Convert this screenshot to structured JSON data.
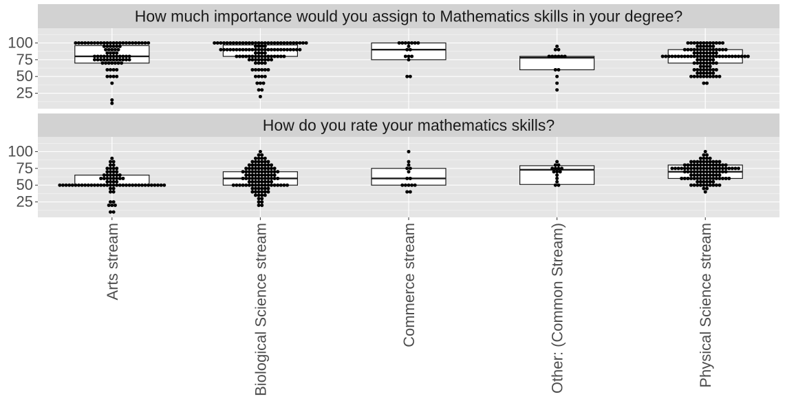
{
  "chart_data": {
    "type": "boxplot",
    "categories": [
      "Arts stream",
      "Biological Science stream",
      "Commerce stream",
      "Other: (Common Stream)",
      "Physical Science stream"
    ],
    "y_ticks": [
      25,
      50,
      75,
      100
    ],
    "ylim": [
      2,
      122
    ],
    "grid": true,
    "legend": "none",
    "colors": {
      "panel_bg": "#e5e5e5",
      "grid_major": "#ffffff",
      "strip_bg": "#d2d2d2",
      "box_fill": "#ffffff",
      "box_stroke": "#1a1a1a",
      "point": "#000000",
      "tick_text": "#4d4d4d",
      "strip_text": "#1a1a1a"
    },
    "panels": [
      {
        "title": "How much importance would you assign to Mathematics skills in your degree?",
        "boxes": [
          {
            "q1": 70,
            "median": 80,
            "q3": 96
          },
          {
            "q1": 80,
            "median": 90,
            "q3": 97
          },
          {
            "q1": 75,
            "median": 90,
            "q3": 100
          },
          {
            "q1": 60,
            "median": 78,
            "q3": 80
          },
          {
            "q1": 70,
            "median": 80,
            "q3": 90
          }
        ],
        "points": [
          [
            [
              100,
              24
            ],
            [
              95,
              6
            ],
            [
              90,
              5
            ],
            [
              85,
              4
            ],
            [
              80,
              12
            ],
            [
              75,
              12
            ],
            [
              70,
              7
            ],
            [
              60,
              4
            ],
            [
              50,
              4
            ],
            [
              40,
              1
            ],
            [
              15,
              1
            ],
            [
              10,
              1
            ]
          ],
          [
            [
              100,
              30
            ],
            [
              95,
              4
            ],
            [
              90,
              26
            ],
            [
              85,
              4
            ],
            [
              80,
              16
            ],
            [
              75,
              8
            ],
            [
              70,
              4
            ],
            [
              60,
              6
            ],
            [
              50,
              4
            ],
            [
              40,
              3
            ],
            [
              30,
              2
            ],
            [
              20,
              1
            ]
          ],
          [
            [
              100,
              7
            ],
            [
              95,
              1
            ],
            [
              90,
              2
            ],
            [
              80,
              3
            ],
            [
              75,
              1
            ],
            [
              50,
              2
            ]
          ],
          [
            [
              95,
              1
            ],
            [
              90,
              2
            ],
            [
              80,
              6
            ],
            [
              60,
              2
            ],
            [
              50,
              1
            ],
            [
              40,
              1
            ],
            [
              30,
              1
            ]
          ],
          [
            [
              100,
              12
            ],
            [
              95,
              6
            ],
            [
              90,
              14
            ],
            [
              85,
              8
            ],
            [
              80,
              28
            ],
            [
              75,
              6
            ],
            [
              70,
              8
            ],
            [
              65,
              4
            ],
            [
              60,
              8
            ],
            [
              55,
              6
            ],
            [
              50,
              10
            ],
            [
              40,
              2
            ]
          ]
        ]
      },
      {
        "title": "How do you rate your mathematics skills?",
        "boxes": [
          {
            "q1": 50,
            "median": 50,
            "q3": 65
          },
          {
            "q1": 50,
            "median": 60,
            "q3": 70
          },
          {
            "q1": 50,
            "median": 60,
            "q3": 75
          },
          {
            "q1": 51,
            "median": 73,
            "q3": 79
          },
          {
            "q1": 60,
            "median": 70,
            "q3": 80
          }
        ],
        "points": [
          [
            [
              90,
              1
            ],
            [
              85,
              2
            ],
            [
              80,
              2
            ],
            [
              75,
              4
            ],
            [
              70,
              4
            ],
            [
              65,
              6
            ],
            [
              60,
              8
            ],
            [
              55,
              4
            ],
            [
              50,
              34
            ],
            [
              45,
              2
            ],
            [
              40,
              2
            ],
            [
              25,
              2
            ],
            [
              20,
              3
            ],
            [
              10,
              2
            ]
          ],
          [
            [
              100,
              1
            ],
            [
              95,
              2
            ],
            [
              90,
              4
            ],
            [
              85,
              6
            ],
            [
              80,
              8
            ],
            [
              75,
              10
            ],
            [
              70,
              12
            ],
            [
              65,
              10
            ],
            [
              60,
              12
            ],
            [
              55,
              8
            ],
            [
              50,
              18
            ],
            [
              45,
              6
            ],
            [
              40,
              6
            ],
            [
              35,
              4
            ],
            [
              30,
              2
            ],
            [
              25,
              2
            ],
            [
              20,
              2
            ]
          ],
          [
            [
              100,
              1
            ],
            [
              85,
              1
            ],
            [
              80,
              1
            ],
            [
              75,
              2
            ],
            [
              70,
              1
            ],
            [
              60,
              2
            ],
            [
              50,
              5
            ],
            [
              40,
              2
            ]
          ],
          [
            [
              85,
              1
            ],
            [
              80,
              2
            ],
            [
              75,
              4
            ],
            [
              70,
              3
            ],
            [
              65,
              1
            ],
            [
              60,
              1
            ],
            [
              55,
              1
            ],
            [
              50,
              2
            ]
          ],
          [
            [
              100,
              1
            ],
            [
              95,
              2
            ],
            [
              90,
              4
            ],
            [
              85,
              10
            ],
            [
              80,
              14
            ],
            [
              75,
              22
            ],
            [
              70,
              14
            ],
            [
              65,
              10
            ],
            [
              60,
              16
            ],
            [
              55,
              6
            ],
            [
              50,
              10
            ],
            [
              45,
              2
            ],
            [
              40,
              1
            ]
          ]
        ]
      }
    ]
  }
}
